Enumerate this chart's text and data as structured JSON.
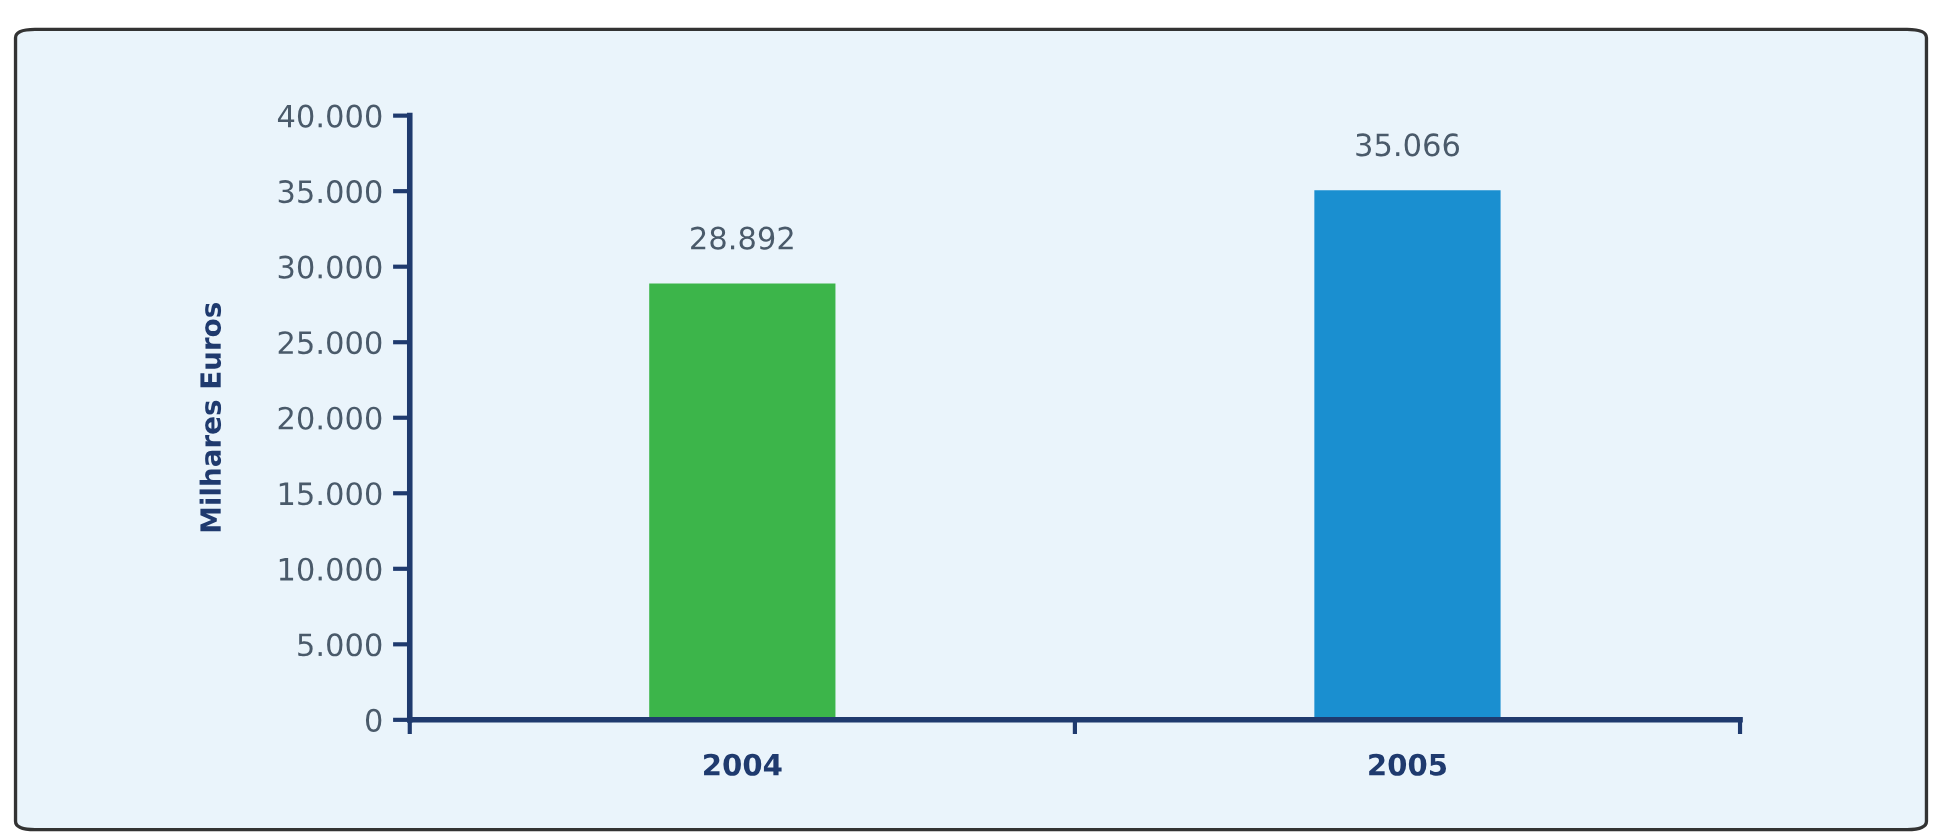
{
  "chart_data": {
    "type": "bar",
    "ylabel": "Milhares Euros",
    "categories": [
      "2004",
      "2005"
    ],
    "values": [
      28892,
      35066
    ],
    "colors": [
      "#3cb54a",
      "#1a8fd0"
    ],
    "value_labels": [
      "28.892",
      "35.066"
    ],
    "ylim": [
      0,
      40000
    ],
    "yticks": [
      0,
      {
        "value": 5000,
        "label": "5.000"
      },
      {
        "value": 10000,
        "label": "10.000"
      },
      {
        "value": 15000,
        "label": "15.000"
      },
      {
        "value": 20000,
        "label": "20.000"
      },
      {
        "value": 25000,
        "label": "25.000"
      },
      {
        "value": 30000,
        "label": "30.000"
      },
      {
        "value": 35000,
        "label": "35.000"
      },
      {
        "value": 40000,
        "label": "40.000"
      }
    ],
    "grid": false
  }
}
